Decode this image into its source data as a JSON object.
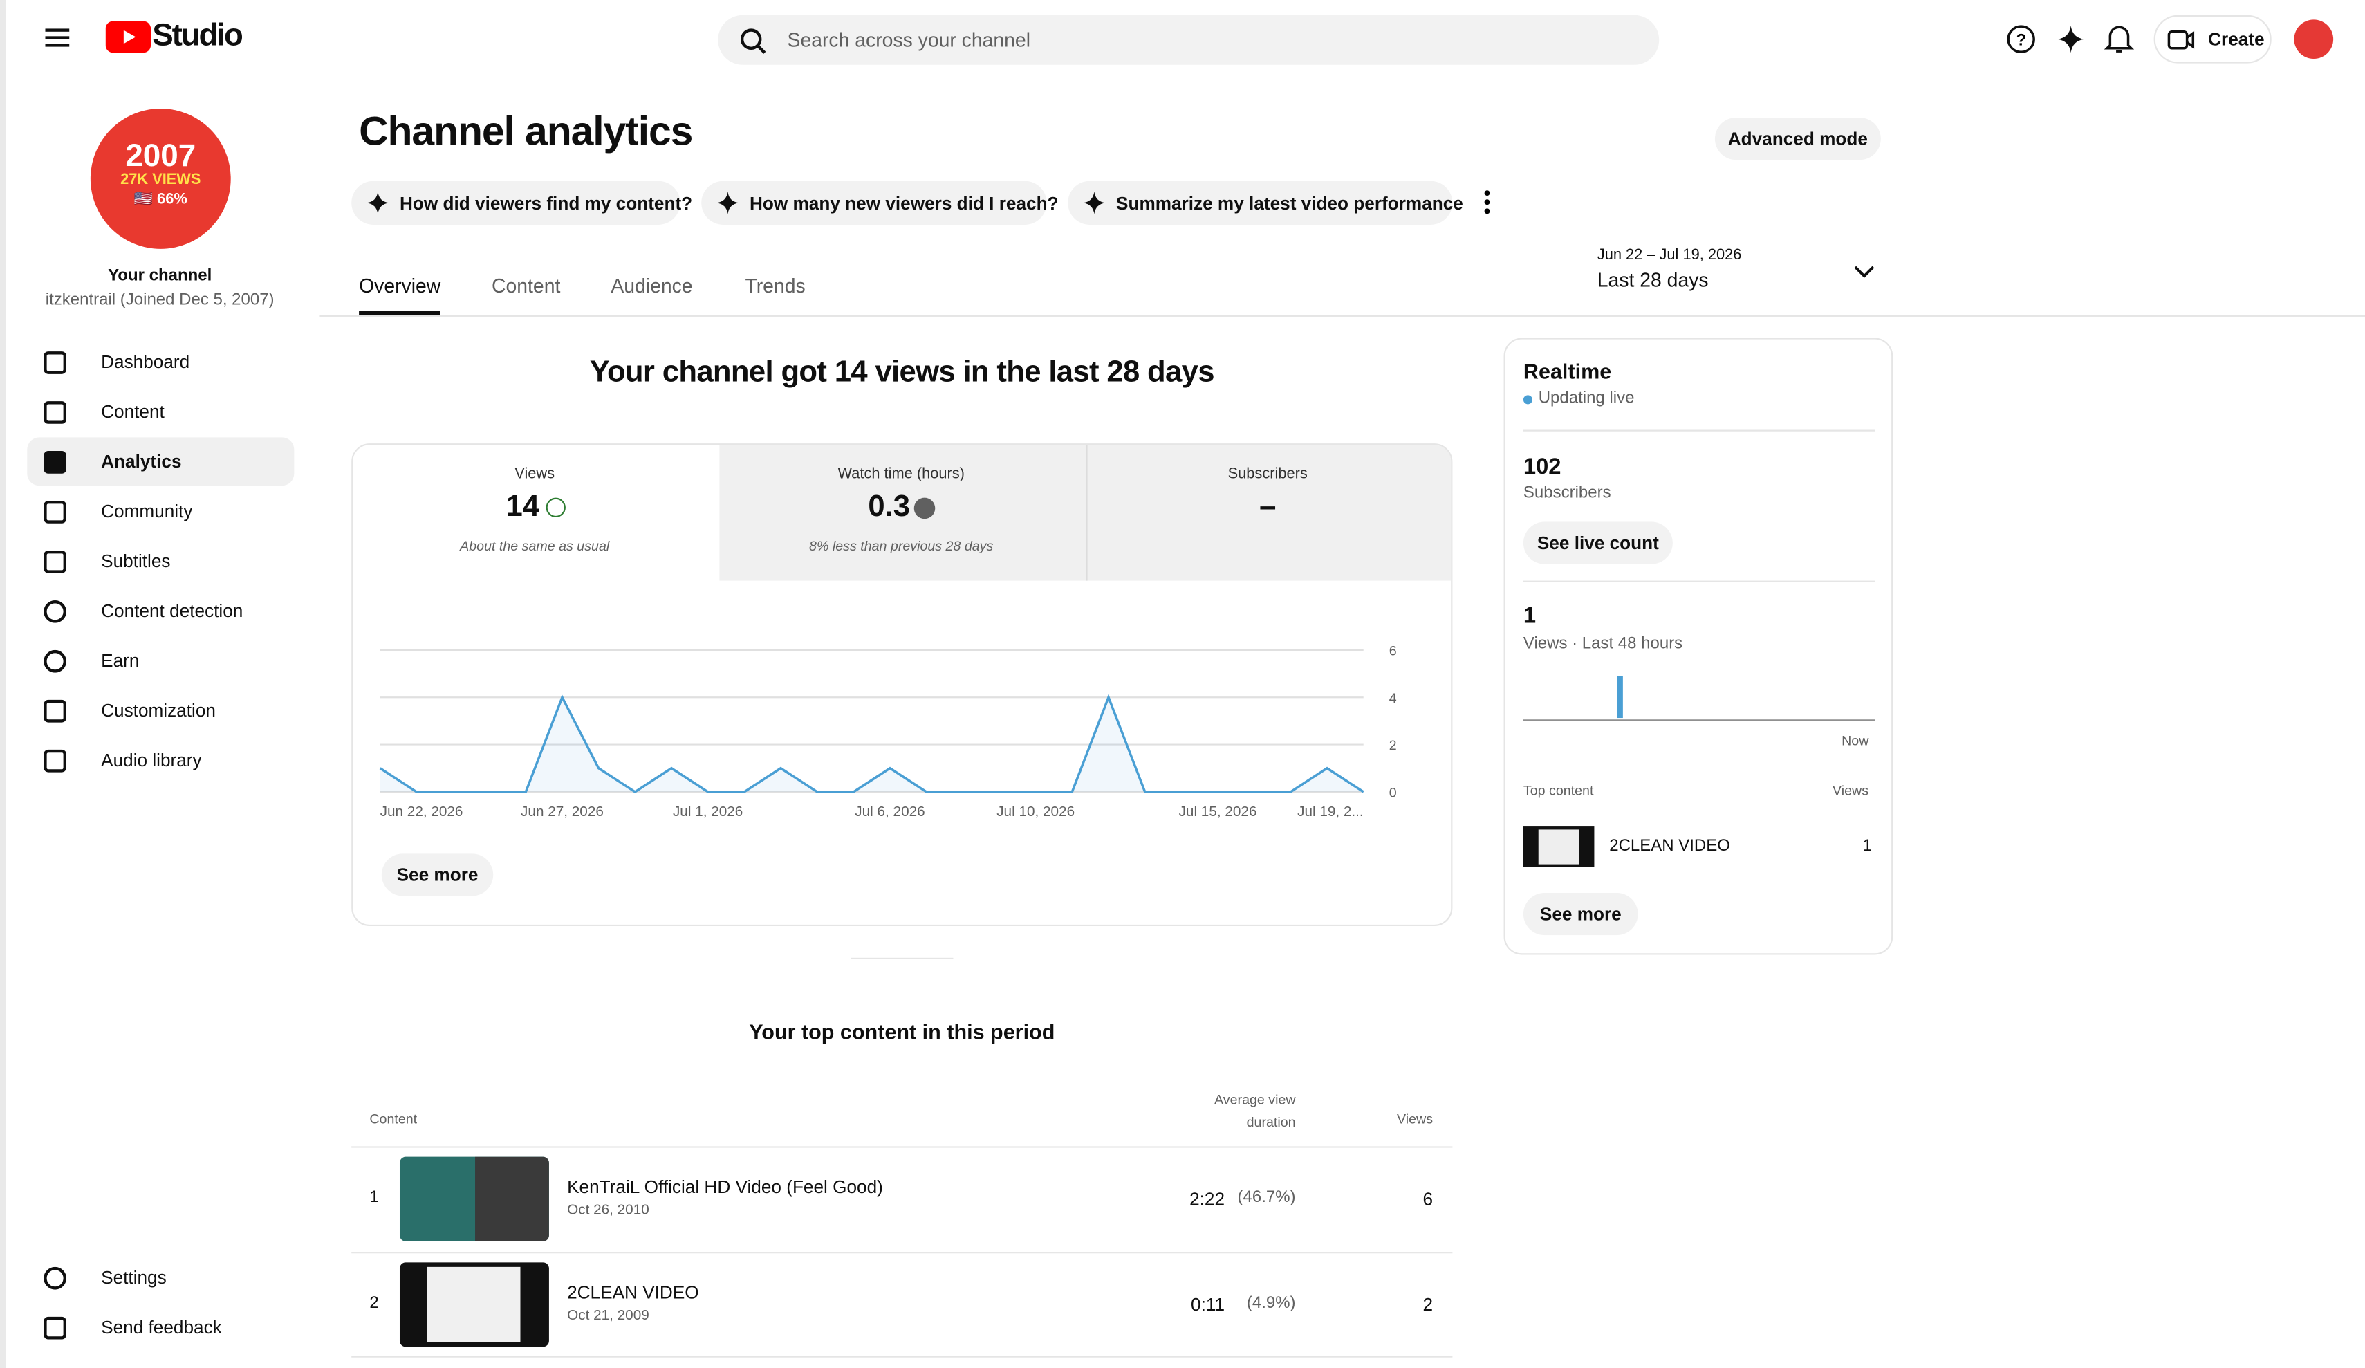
{
  "header": {
    "logo": "Studio",
    "search_placeholder": "Search across your channel",
    "create": "Create"
  },
  "sidebar": {
    "avatar": {
      "line1": "2007",
      "line2": "27K VIEWS",
      "line3": "🇺🇸 66%"
    },
    "channel_label": "Your channel",
    "channel_name": "itzkentrail (Joined Dec 5, 2007)",
    "nav": [
      "Dashboard",
      "Content",
      "Analytics",
      "Community",
      "Subtitles",
      "Content detection",
      "Earn",
      "Customization",
      "Audio library"
    ],
    "footer": [
      "Settings",
      "Send feedback"
    ]
  },
  "page": {
    "title": "Channel analytics",
    "advanced": "Advanced mode",
    "prompts": [
      "How did viewers find my content?",
      "How many new viewers did I reach?",
      "Summarize my latest video performance"
    ],
    "tabs": [
      "Overview",
      "Content",
      "Audience",
      "Trends"
    ],
    "date_range": "Jun 22 – Jul 19, 2026",
    "period": "Last 28 days"
  },
  "overview": {
    "headline": "Your channel got 14 views in the last 28 days",
    "cards": [
      {
        "label": "Views",
        "value": 14,
        "note": "About the same as usual"
      },
      {
        "label": "Watch time (hours)",
        "value": 0.3,
        "note": "8% less than previous 28 days"
      },
      {
        "label": "Subscribers",
        "value": "–"
      }
    ],
    "see_more": "See more"
  },
  "chart_data": {
    "type": "line",
    "x": [
      "Jun 22, 2026",
      "Jun 23, 2026",
      "Jun 24, 2026",
      "Jun 25, 2026",
      "Jun 26, 2026",
      "Jun 27, 2026",
      "Jun 28, 2026",
      "Jun 29, 2026",
      "Jun 30, 2026",
      "Jul 1, 2026",
      "Jul 2, 2026",
      "Jul 3, 2026",
      "Jul 4, 2026",
      "Jul 5, 2026",
      "Jul 6, 2026",
      "Jul 7, 2026",
      "Jul 8, 2026",
      "Jul 9, 2026",
      "Jul 10, 2026",
      "Jul 11, 2026",
      "Jul 12, 2026",
      "Jul 13, 2026",
      "Jul 14, 2026",
      "Jul 15, 2026",
      "Jul 16, 2026",
      "Jul 17, 2026",
      "Jul 18, 2026",
      "Jul 19, 2026"
    ],
    "values": [
      1,
      0,
      0,
      0,
      0,
      4,
      1,
      0,
      1,
      0,
      0,
      1,
      0,
      0,
      1,
      0,
      0,
      0,
      0,
      0,
      4,
      0,
      0,
      0,
      0,
      0,
      1,
      0
    ],
    "color": "#4a9fd4",
    "ylim": [
      0,
      6
    ],
    "yticks": [
      0,
      2,
      4,
      6
    ],
    "xticks": [
      "Jun 22, 2026",
      "Jun 27, 2026",
      "Jul 1, 2026",
      "Jul 6, 2026",
      "Jul 10, 2026",
      "Jul 15, 2026",
      {
        "value": "Jul 19, 2026",
        "label": "Jul 19, 2..."
      }
    ],
    "grid": true
  },
  "realtime": {
    "title": "Realtime",
    "status": "Updating live",
    "subscribers": 102,
    "subscribers_label": "Subscribers",
    "live_count": "See live count",
    "views": 1,
    "views_label": "Views · Last 48 hours",
    "now": "Now",
    "top_content_label": "Top content",
    "views_col": "Views",
    "top": [
      {
        "title": "2CLEAN VIDEO",
        "views": 1
      }
    ],
    "see_more": "See more"
  },
  "top_content": {
    "title": "Your top content in this period",
    "columns": [
      "Content",
      "Average view duration",
      "Views"
    ],
    "rows": [
      {
        "rank": 1,
        "title": "KenTraiL Official HD Video (Feel Good)",
        "date": "Oct 26, 2010",
        "duration": "2:22",
        "percent": "(46.7%)",
        "views": 6
      },
      {
        "rank": 2,
        "title": "2CLEAN VIDEO",
        "date": "Oct 21, 2009",
        "duration": "0:11",
        "percent": "(4.9%)",
        "views": 2
      }
    ]
  }
}
